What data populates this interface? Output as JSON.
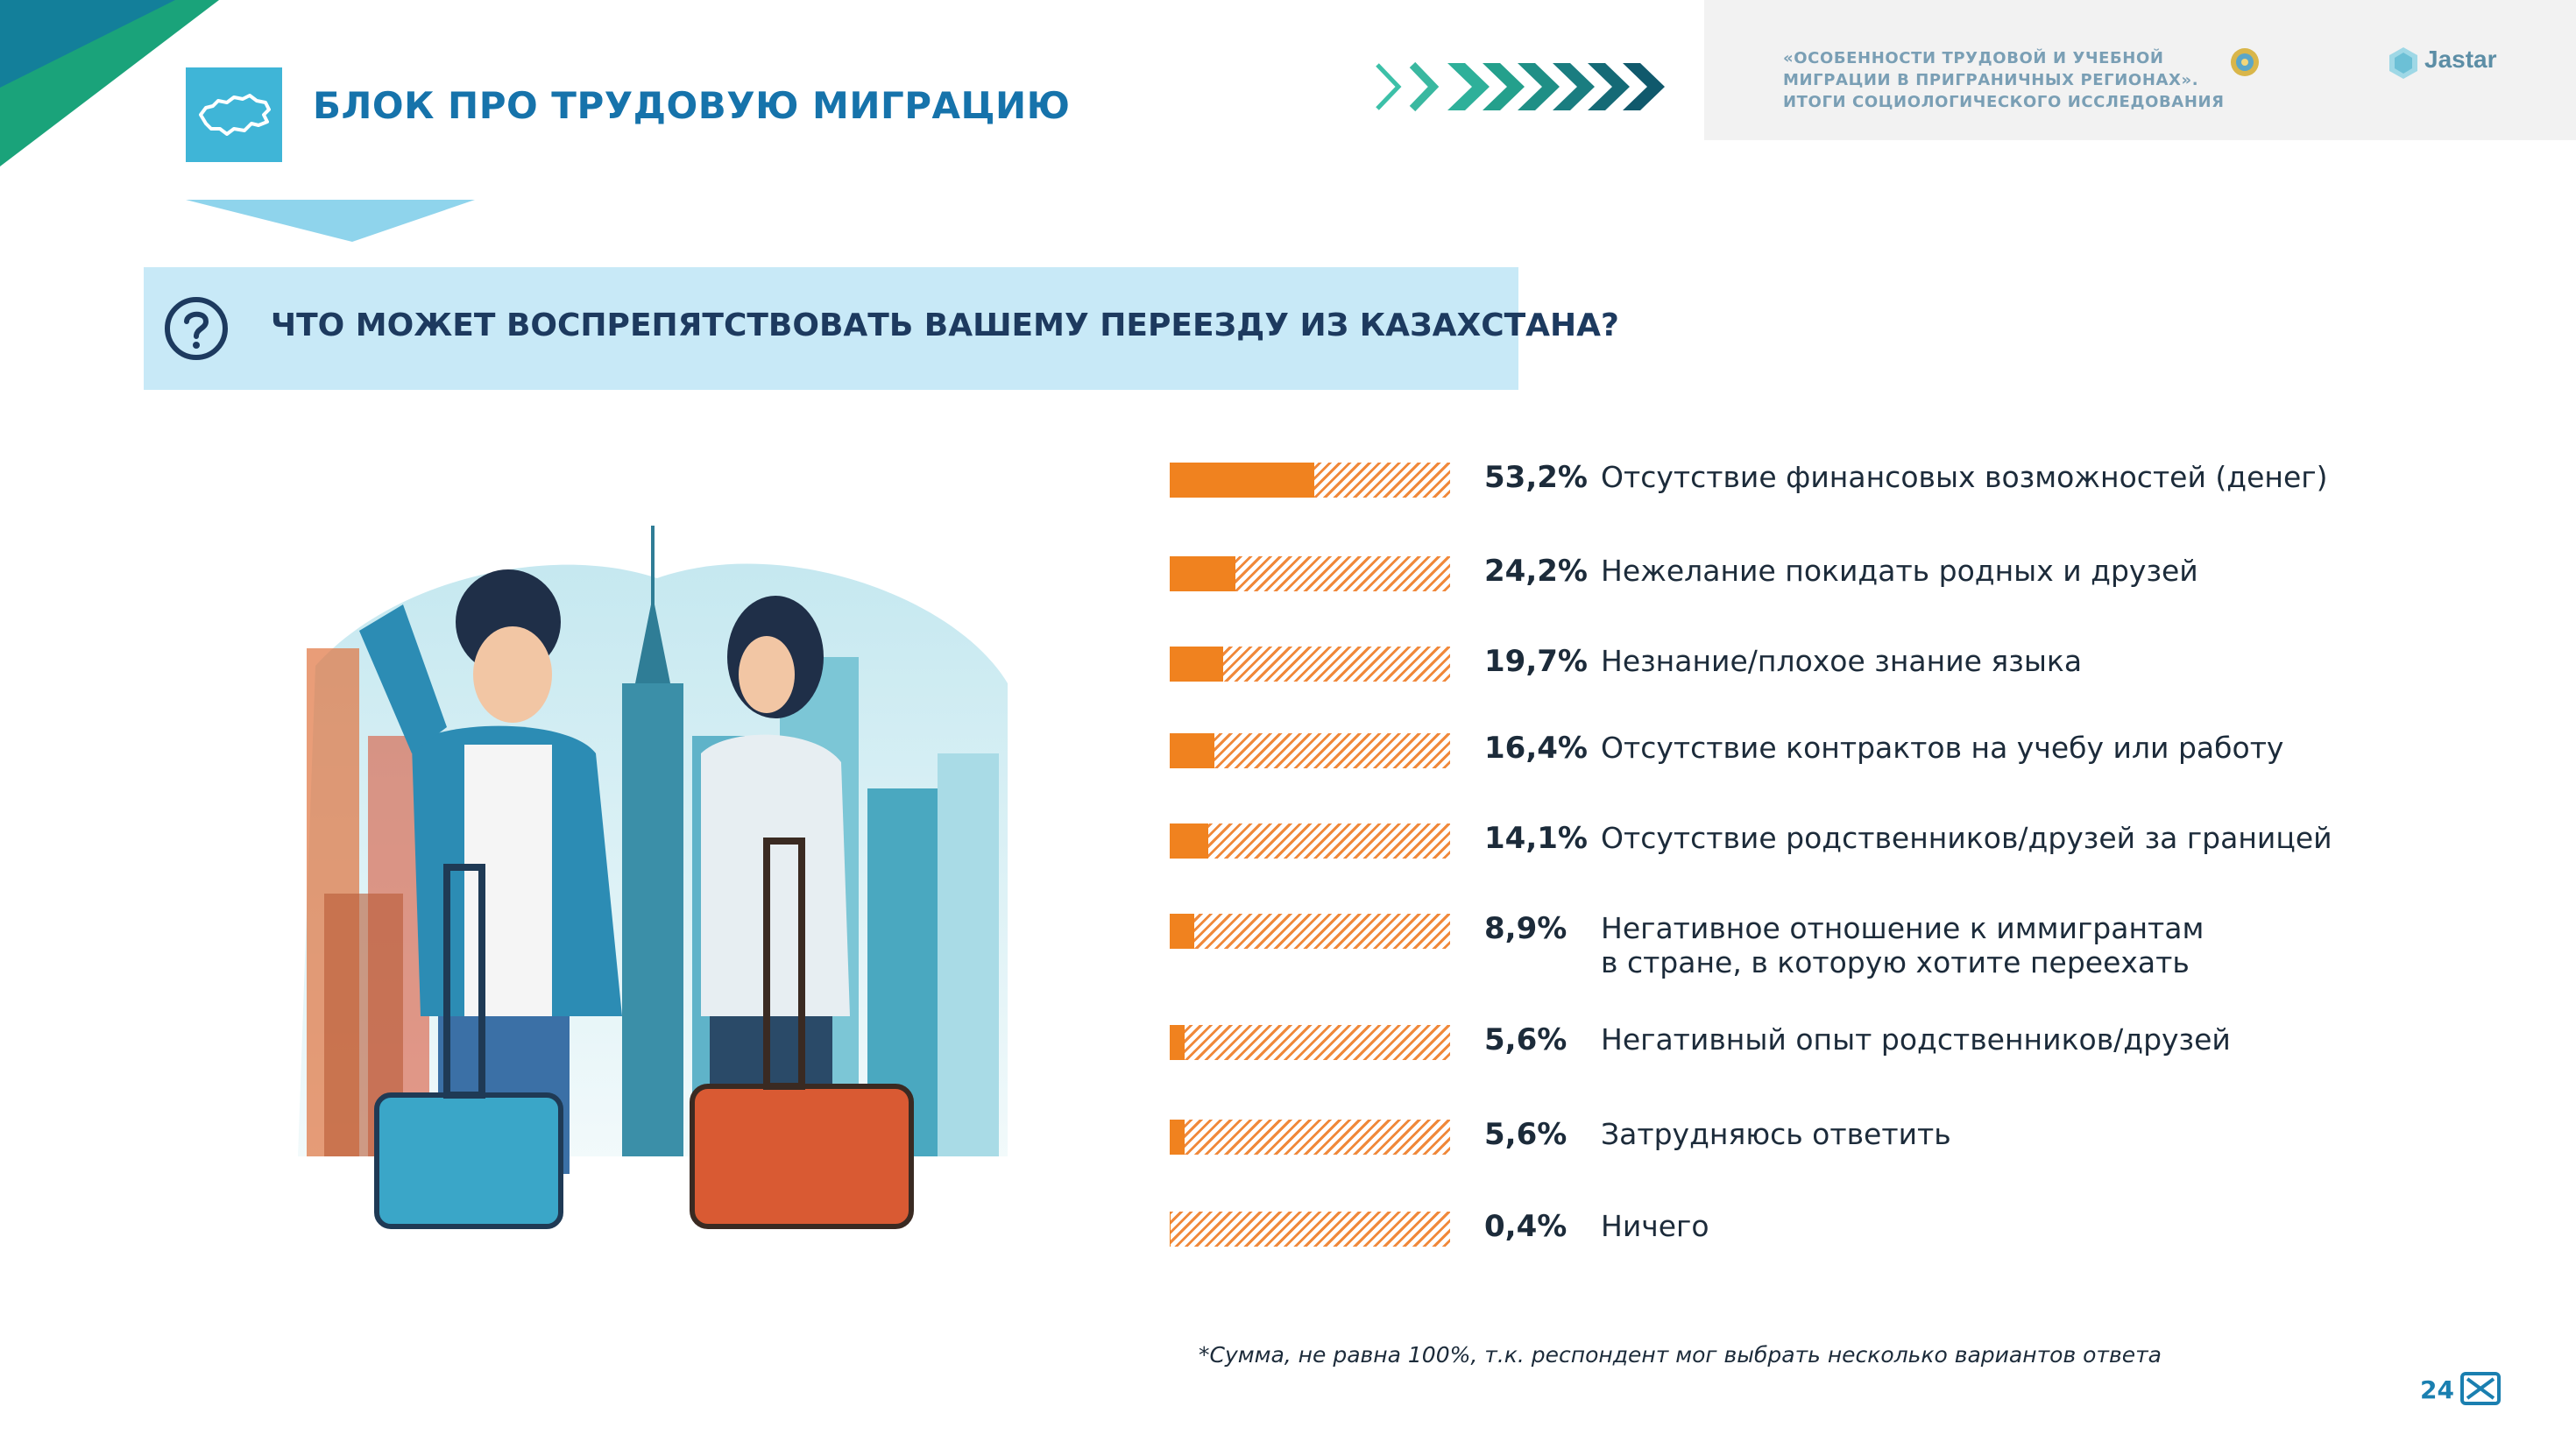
{
  "header": {
    "block_title": "БЛОК ПРО ТРУДОВУЮ МИГРАЦИЮ",
    "study_title": "«ОСОБЕННОСТИ ТРУДОВОЙ И УЧЕБНОЙ\nМИГРАЦИИ В ПРИГРАНИЧНЫХ РЕГИОНАХ».\nИТОГИ СОЦИОЛОГИЧЕСКОГО ИССЛЕДОВАНИЯ",
    "ministry_text": "",
    "brand": "Jastar"
  },
  "question": {
    "icon": "question-mark-icon",
    "text": "ЧТО МОЖЕТ ВОСПРЕПЯТСТВОВАТЬ ВАШЕМУ ПЕРЕЕЗДУ ИЗ КАЗАХСТАНА?"
  },
  "chart_data": {
    "type": "bar",
    "orientation": "horizontal",
    "xlim": [
      0,
      100
    ],
    "grid": false,
    "categories": [
      "Отсутствие финансовых возможностей (денег)",
      "Нежелание покидать родных и друзей",
      "Незнание/плохое знание языка",
      "Отсутствие контрактов на учебу или работу",
      "Отсутствие родственников/друзей за границей",
      "Негативное отношение к иммигрантам\nв стране, в которую хотите переехать",
      "Негативный опыт родственников/друзей",
      "Затрудняюсь ответить",
      "Ничего"
    ],
    "values": [
      53.2,
      24.2,
      19.7,
      16.4,
      14.1,
      8.9,
      5.6,
      5.6,
      0.4
    ],
    "value_labels": [
      "53,2%",
      "24,2%",
      "19,7%",
      "16,4%",
      "14,1%",
      "8,9%",
      "5,6%",
      "5,6%",
      "0,4%"
    ]
  },
  "footnote": "*Сумма, не равна 100%, т.к. респондент мог выбрать несколько вариантов ответа",
  "page_number": "24",
  "colors": {
    "accent_blue": "#1673ab",
    "icon_bg": "#3fb5d7",
    "question_bg": "#c8e9f7",
    "bar_orange": "#f0821f",
    "corner_green": "#1aa37a",
    "corner_teal": "#137f9a"
  }
}
